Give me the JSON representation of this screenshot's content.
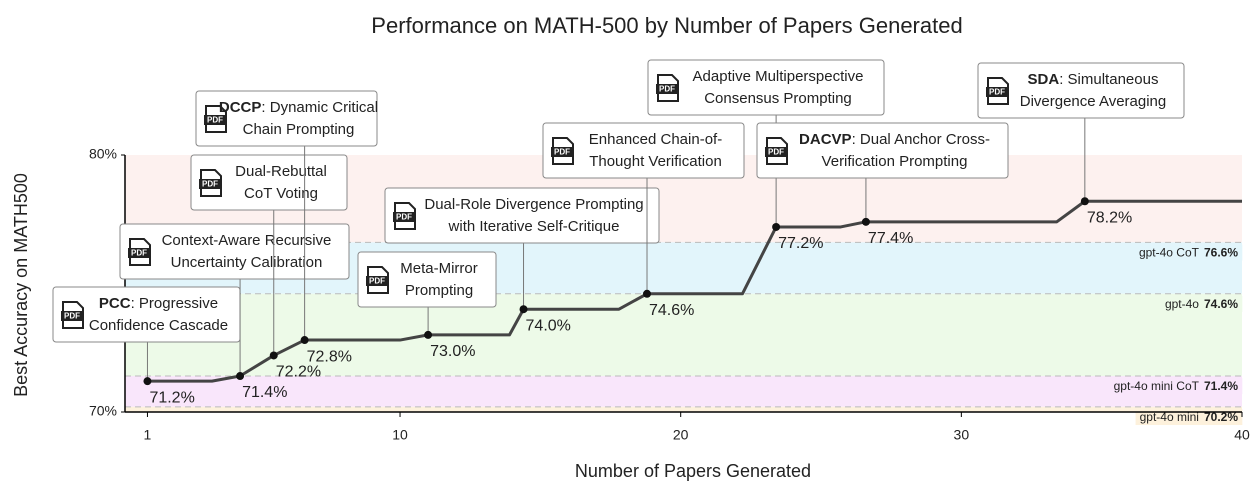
{
  "chart_data": {
    "type": "line",
    "title": "Performance on MATH-500 by Number of Papers Generated",
    "xlabel": "Number of Papers Generated",
    "ylabel": "Best Accuracy on MATH500",
    "xlim": [
      0.2,
      40
    ],
    "xticks": [
      1,
      10,
      20,
      30,
      40
    ],
    "ylim": [
      70,
      80
    ],
    "yticks": [
      {
        "value": 70,
        "label": "70%"
      },
      {
        "value": 80,
        "label": "80%"
      }
    ],
    "color": "#444444",
    "x": [
      1,
      3.3,
      4.3,
      5.5,
      6.6,
      10,
      11,
      13.9,
      14.4,
      17.8,
      18.8,
      22.2,
      23.4,
      25.7,
      26.6,
      33.4,
      34.4,
      40
    ],
    "values": [
      71.2,
      71.2,
      71.4,
      72.2,
      72.8,
      72.8,
      73.0,
      73.0,
      74.0,
      74.0,
      74.6,
      74.6,
      77.2,
      77.2,
      77.4,
      77.4,
      78.2,
      78.2
    ],
    "top_band_color": "#fdf1ef",
    "reference_lines": [
      {
        "name": "gpt-4o CoT",
        "value": 76.6,
        "value_label": "76.6%",
        "color": "#e2f5fb"
      },
      {
        "name": "gpt-4o",
        "value": 74.6,
        "value_label": "74.6%",
        "color": "#edfae8"
      },
      {
        "name": "gpt-4o mini CoT",
        "value": 71.4,
        "value_label": "71.4%",
        "color": "#f9e6fb"
      },
      {
        "name": "gpt-4o mini",
        "value": 70.2,
        "value_label": "70.2%",
        "color": "#fdf1dc"
      }
    ],
    "icon_label": "PDF",
    "annotations": [
      {
        "x": 1,
        "y": 71.2,
        "value_label": "71.2%",
        "bold": "PCC",
        "lines": [
          ": Progressive",
          "Confidence Cascade"
        ]
      },
      {
        "x": 4.3,
        "y": 71.4,
        "value_label": "71.4%",
        "lines": [
          "Context-Aware Recursive",
          "Uncertainty Calibration"
        ]
      },
      {
        "x": 5.5,
        "y": 72.2,
        "value_label": "72.2%",
        "lines": [
          "Dual-Rebuttal",
          "CoT Voting"
        ]
      },
      {
        "x": 6.6,
        "y": 72.8,
        "value_label": "72.8%",
        "bold": "DCCP",
        "lines": [
          ": Dynamic Critical",
          "Chain Prompting"
        ]
      },
      {
        "x": 11,
        "y": 73.0,
        "value_label": "73.0%",
        "lines": [
          "Meta-Mirror",
          "Prompting"
        ]
      },
      {
        "x": 14.4,
        "y": 74.0,
        "value_label": "74.0%",
        "lines": [
          "Dual-Role Divergence Prompting",
          "with Iterative Self-Critique"
        ]
      },
      {
        "x": 18.8,
        "y": 74.6,
        "value_label": "74.6%",
        "lines": [
          "Enhanced Chain-of-",
          "Thought Verification"
        ]
      },
      {
        "x": 23.4,
        "y": 77.2,
        "value_label": "77.2%",
        "lines": [
          "Adaptive Multiperspective",
          "Consensus Prompting"
        ]
      },
      {
        "x": 26.6,
        "y": 77.4,
        "value_label": "77.4%",
        "bold": "DACVP",
        "lines": [
          ": Dual Anchor Cross-",
          "Verification Prompting"
        ]
      },
      {
        "x": 34.4,
        "y": 78.2,
        "value_label": "78.2%",
        "bold": "SDA",
        "lines": [
          ": Simultaneous",
          "Divergence Averaging"
        ]
      }
    ]
  }
}
